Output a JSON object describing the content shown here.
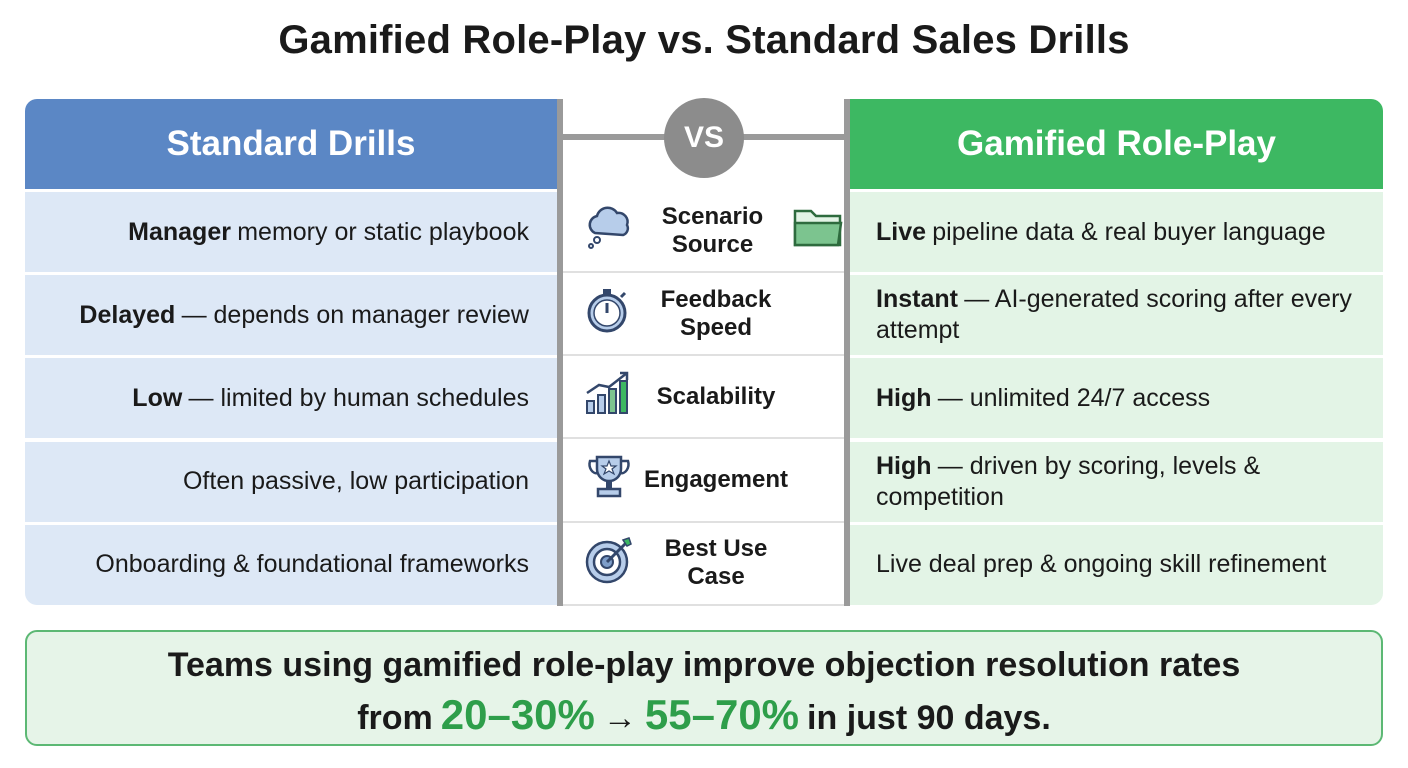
{
  "title": "Gamified Role-Play vs. Standard Sales Drills",
  "left_header": "Standard Drills",
  "vs": "VS",
  "right_header": "Gamified Role-Play",
  "rows": [
    {
      "criterion": "Scenario Source",
      "left": {
        "bold": "Manager",
        "text": "memory or static playbook"
      },
      "right": {
        "bold": "Live",
        "text": "pipeline data & real buyer language"
      }
    },
    {
      "criterion": "Feedback Speed",
      "left": {
        "bold": "Delayed",
        "text": "— depends on manager review"
      },
      "right": {
        "bold": "Instant",
        "text": "— AI-generated scoring after every attempt"
      }
    },
    {
      "criterion": "Scalability",
      "left": {
        "bold": "Low",
        "text": "— limited by human schedules"
      },
      "right": {
        "bold": "High",
        "text": "— unlimited 24/7 access"
      }
    },
    {
      "criterion": "Engagement",
      "left": {
        "text": "Often passive, low participation"
      },
      "right": {
        "bold": "High",
        "text": "— driven by scoring, levels & competition"
      }
    },
    {
      "criterion": "Best Use Case",
      "left": {
        "text": "Onboarding & foundational frameworks"
      },
      "right": {
        "text": "Live deal prep & ongoing skill refinement"
      }
    }
  ],
  "footer": {
    "line1": "Teams using gamified role-play improve objection resolution rates",
    "from": "from",
    "before": "20–30%",
    "arrow": "→",
    "after": "55–70%",
    "end": "in just 90 days."
  }
}
